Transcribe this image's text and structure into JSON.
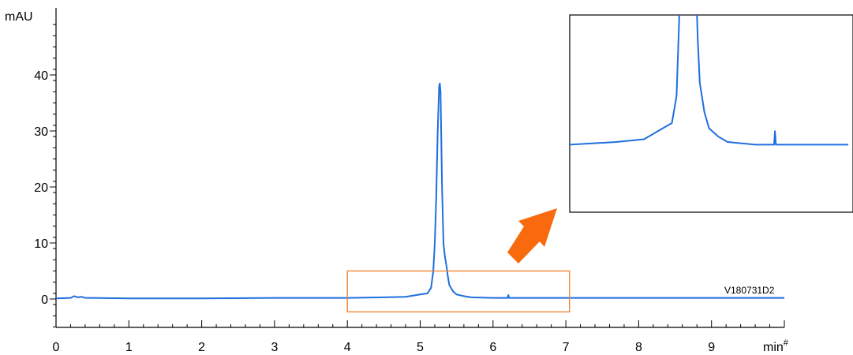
{
  "chart_data": {
    "type": "line",
    "title": "",
    "xlabel": "",
    "ylabel": "",
    "x_unit": "min",
    "x_unit_suffix": "#",
    "y_unit": "mAU",
    "xlim": [
      0,
      10
    ],
    "ylim": [
      -5,
      50
    ],
    "x_ticks": [
      0,
      1,
      2,
      3,
      4,
      5,
      6,
      7,
      8,
      9
    ],
    "x_tick_labels": [
      "0",
      "1",
      "2",
      "3",
      "4",
      "5",
      "6",
      "7",
      "8",
      "9"
    ],
    "y_ticks": [
      0,
      10,
      20,
      30,
      40
    ],
    "y_tick_labels": [
      "0",
      "10",
      "20",
      "30",
      "40"
    ],
    "grid": false,
    "series": [
      {
        "name": "V180731D2",
        "color": "#1f6fe0",
        "x": [
          0.0,
          0.2,
          0.25,
          0.3,
          0.35,
          0.4,
          0.5,
          1.0,
          2.0,
          3.0,
          4.0,
          4.5,
          4.8,
          5.0,
          5.1,
          5.15,
          5.18,
          5.2,
          5.22,
          5.24,
          5.26,
          5.27,
          5.28,
          5.3,
          5.32,
          5.34,
          5.36,
          5.38,
          5.4,
          5.45,
          5.5,
          5.6,
          5.7,
          6.0,
          6.2,
          6.21,
          6.22,
          6.5,
          7.0,
          8.0,
          9.0,
          10.0
        ],
        "y": [
          0.1,
          0.2,
          0.5,
          0.3,
          0.4,
          0.2,
          0.2,
          0.1,
          0.1,
          0.2,
          0.2,
          0.3,
          0.4,
          0.8,
          1.0,
          2.0,
          5.0,
          10.0,
          18.0,
          30.0,
          38.0,
          38.5,
          37.0,
          20.0,
          10.0,
          7.5,
          6.0,
          4.0,
          2.5,
          1.4,
          0.8,
          0.5,
          0.3,
          0.2,
          0.2,
          0.7,
          0.2,
          0.2,
          0.2,
          0.2,
          0.2,
          0.2
        ]
      }
    ],
    "zoom_region": {
      "x": [
        4.0,
        7.05
      ],
      "y": [
        -2.3,
        5.0
      ]
    },
    "colors": {
      "trace": "#1f6fe0",
      "zoom_box": "#f07d2b",
      "arrow": "#f96a0f"
    }
  }
}
